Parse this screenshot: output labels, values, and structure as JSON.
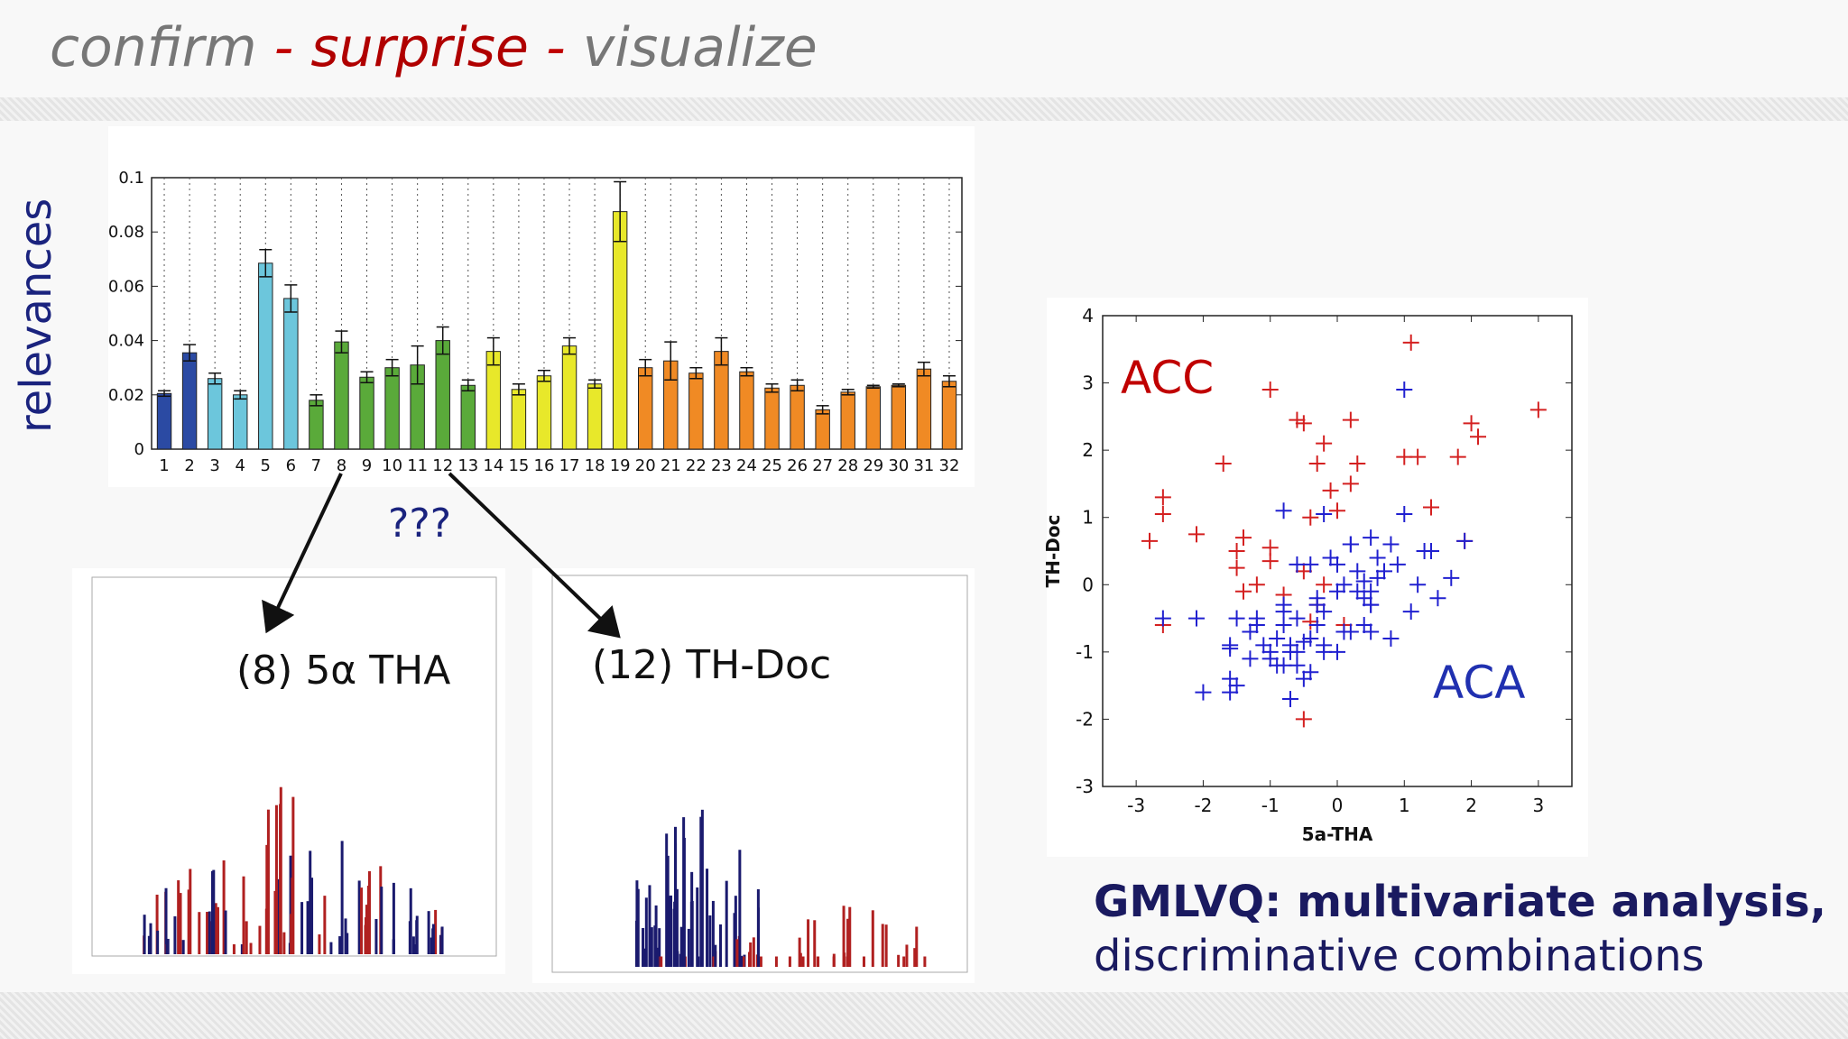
{
  "slide": {
    "title_a": "confirm",
    "title_sep1": " - ",
    "title_b": "surprise",
    "title_sep2": " - ",
    "title_c": "visualize",
    "y_axis_label": "relevances",
    "question": "???",
    "hist1_label": "(8) 5α THA",
    "hist2_label": "(12) TH-Doc",
    "acc_label": "ACC",
    "aca_label": "ACA",
    "note_line1": "GMLVQ: multivariate analysis,",
    "note_line2": "discriminative combinations",
    "colors": {
      "accent_red": "#c00000",
      "navy": "#1a237e",
      "title_gray": "#777777"
    }
  },
  "chart_data": [
    {
      "type": "bar",
      "title": "",
      "xlabel": "",
      "ylabel": "relevances",
      "ylim": [
        0,
        0.1
      ],
      "yticks": [
        "0",
        "0.02",
        "0.04",
        "0.06",
        "0.08",
        "0.1"
      ],
      "categories": [
        "1",
        "2",
        "3",
        "4",
        "5",
        "6",
        "7",
        "8",
        "9",
        "10",
        "11",
        "12",
        "13",
        "14",
        "15",
        "16",
        "17",
        "18",
        "19",
        "20",
        "21",
        "22",
        "23",
        "24",
        "25",
        "26",
        "27",
        "28",
        "29",
        "30",
        "31",
        "32"
      ],
      "values": [
        0.0205,
        0.0355,
        0.026,
        0.02,
        0.0685,
        0.0555,
        0.018,
        0.0395,
        0.0265,
        0.03,
        0.031,
        0.04,
        0.0235,
        0.036,
        0.022,
        0.027,
        0.038,
        0.024,
        0.0875,
        0.03,
        0.0325,
        0.028,
        0.036,
        0.0285,
        0.0225,
        0.0235,
        0.0145,
        0.021,
        0.023,
        0.0235,
        0.0295,
        0.025
      ],
      "errors": [
        0.001,
        0.003,
        0.002,
        0.0015,
        0.005,
        0.005,
        0.002,
        0.004,
        0.002,
        0.003,
        0.007,
        0.005,
        0.002,
        0.005,
        0.002,
        0.002,
        0.003,
        0.0015,
        0.011,
        0.003,
        0.007,
        0.002,
        0.005,
        0.0015,
        0.0015,
        0.002,
        0.0015,
        0.001,
        0.0005,
        0.0005,
        0.0025,
        0.002
      ],
      "colors": [
        "#2b4aa3",
        "#2b4aa3",
        "#6cc6dc",
        "#6cc6dc",
        "#6cc6dc",
        "#6cc6dc",
        "#5aaa3a",
        "#5aaa3a",
        "#5aaa3a",
        "#5aaa3a",
        "#5aaa3a",
        "#5aaa3a",
        "#5aaa3a",
        "#e8e82a",
        "#e8e82a",
        "#e8e82a",
        "#e8e82a",
        "#e8e82a",
        "#e8e82a",
        "#f08a24",
        "#f08a24",
        "#f08a24",
        "#f08a24",
        "#f08a24",
        "#f08a24",
        "#f08a24",
        "#f08a24",
        "#f08a24",
        "#f08a24",
        "#f08a24",
        "#f08a24",
        "#f08a24"
      ],
      "grid": "vertical dotted"
    },
    {
      "type": "scatter",
      "title": "",
      "xlabel": "5a-THA",
      "ylabel": "TH-Doc",
      "xlim": [
        -3.5,
        3.5
      ],
      "ylim": [
        -3,
        4
      ],
      "xticks": [
        "-3",
        "-2",
        "-1",
        "0",
        "1",
        "2",
        "3"
      ],
      "yticks": [
        "-3",
        "-2",
        "-1",
        "0",
        "1",
        "2",
        "3",
        "4"
      ],
      "series": [
        {
          "name": "ACC",
          "color": "#d42020",
          "marker": "+",
          "x": [
            1.1,
            -1.0,
            2.0,
            3.0,
            -0.6,
            -0.5,
            0.2,
            2.1,
            1.0,
            1.2,
            1.8,
            -1.7,
            -0.3,
            0.3,
            0.2,
            -0.1,
            -2.6,
            -2.6,
            -2.8,
            -2.1,
            -1.4,
            -1.5,
            -1.0,
            -1.0,
            -0.5,
            -1.5,
            -1.2,
            -1.4,
            -0.8,
            -0.3,
            -0.4,
            -2.6,
            -0.5,
            -0.4,
            1.4,
            1.9,
            0.0,
            -0.2,
            0.1,
            -0.2
          ],
          "y": [
            3.6,
            2.9,
            2.4,
            2.6,
            2.45,
            2.4,
            2.45,
            2.2,
            1.9,
            1.9,
            1.9,
            1.8,
            1.8,
            1.8,
            1.5,
            1.4,
            1.3,
            1.05,
            0.65,
            0.75,
            0.7,
            0.5,
            0.55,
            0.35,
            0.2,
            0.25,
            0.0,
            -0.1,
            -0.15,
            -0.3,
            -0.55,
            -0.6,
            -2.0,
            1.0,
            1.15,
            0.65,
            1.1,
            0.0,
            -0.6,
            2.1
          ]
        },
        {
          "name": "ACA",
          "color": "#2020d0",
          "marker": "+",
          "x": [
            1.0,
            -0.8,
            -0.2,
            1.0,
            0.5,
            0.2,
            0.8,
            1.3,
            0.6,
            0.0,
            -0.6,
            0.7,
            1.2,
            0.4,
            0.6,
            0.5,
            1.7,
            0.9,
            0.3,
            1.9,
            0.1,
            1.5,
            -0.2,
            0.5,
            1.1,
            -0.8,
            0.0,
            -1.5,
            0.4,
            -1.2,
            0.2,
            -0.4,
            -0.7,
            0.8,
            -1.1,
            0.1,
            -0.5,
            -0.9,
            -0.2,
            0.5,
            -1.3,
            -0.6,
            -2.6,
            -2.1,
            -0.3,
            -1.6,
            -0.8,
            -1.0,
            0.0,
            -0.4,
            -0.9,
            -0.6,
            -1.3,
            -0.5,
            -0.2,
            -1.0,
            -1.6,
            -1.6,
            -2.0,
            -0.7,
            -1.5,
            -0.8,
            -1.2,
            -0.6,
            0.3,
            -0.3,
            -0.1,
            0.5,
            1.4,
            -0.4,
            0.4,
            0.2,
            -0.8,
            -0.7,
            -0.3,
            -1.6
          ],
          "y": [
            2.9,
            1.1,
            1.05,
            1.05,
            0.7,
            0.6,
            0.6,
            0.5,
            0.4,
            0.3,
            0.3,
            0.2,
            0.0,
            0.05,
            0.1,
            -0.1,
            0.1,
            0.3,
            0.2,
            0.65,
            0.0,
            -0.2,
            -0.4,
            -0.3,
            -0.4,
            -0.4,
            -0.1,
            -0.5,
            -0.6,
            -0.5,
            -0.7,
            -0.8,
            -0.9,
            -0.8,
            -0.9,
            -0.7,
            -0.85,
            -0.8,
            -0.9,
            -0.3,
            -0.7,
            -1.0,
            -0.5,
            -0.5,
            -0.2,
            -0.9,
            -1.2,
            -1.1,
            -1.0,
            -1.3,
            -1.2,
            -1.2,
            -1.1,
            -1.4,
            -1.0,
            -1.0,
            -1.4,
            -1.6,
            -1.6,
            -1.7,
            -1.5,
            -0.6,
            -0.6,
            -0.5,
            -0.1,
            -0.3,
            0.4,
            -0.7,
            0.5,
            0.3,
            -0.2,
            0.6,
            -0.3,
            -1.0,
            -0.6,
            -0.95
          ]
        }
      ]
    }
  ]
}
